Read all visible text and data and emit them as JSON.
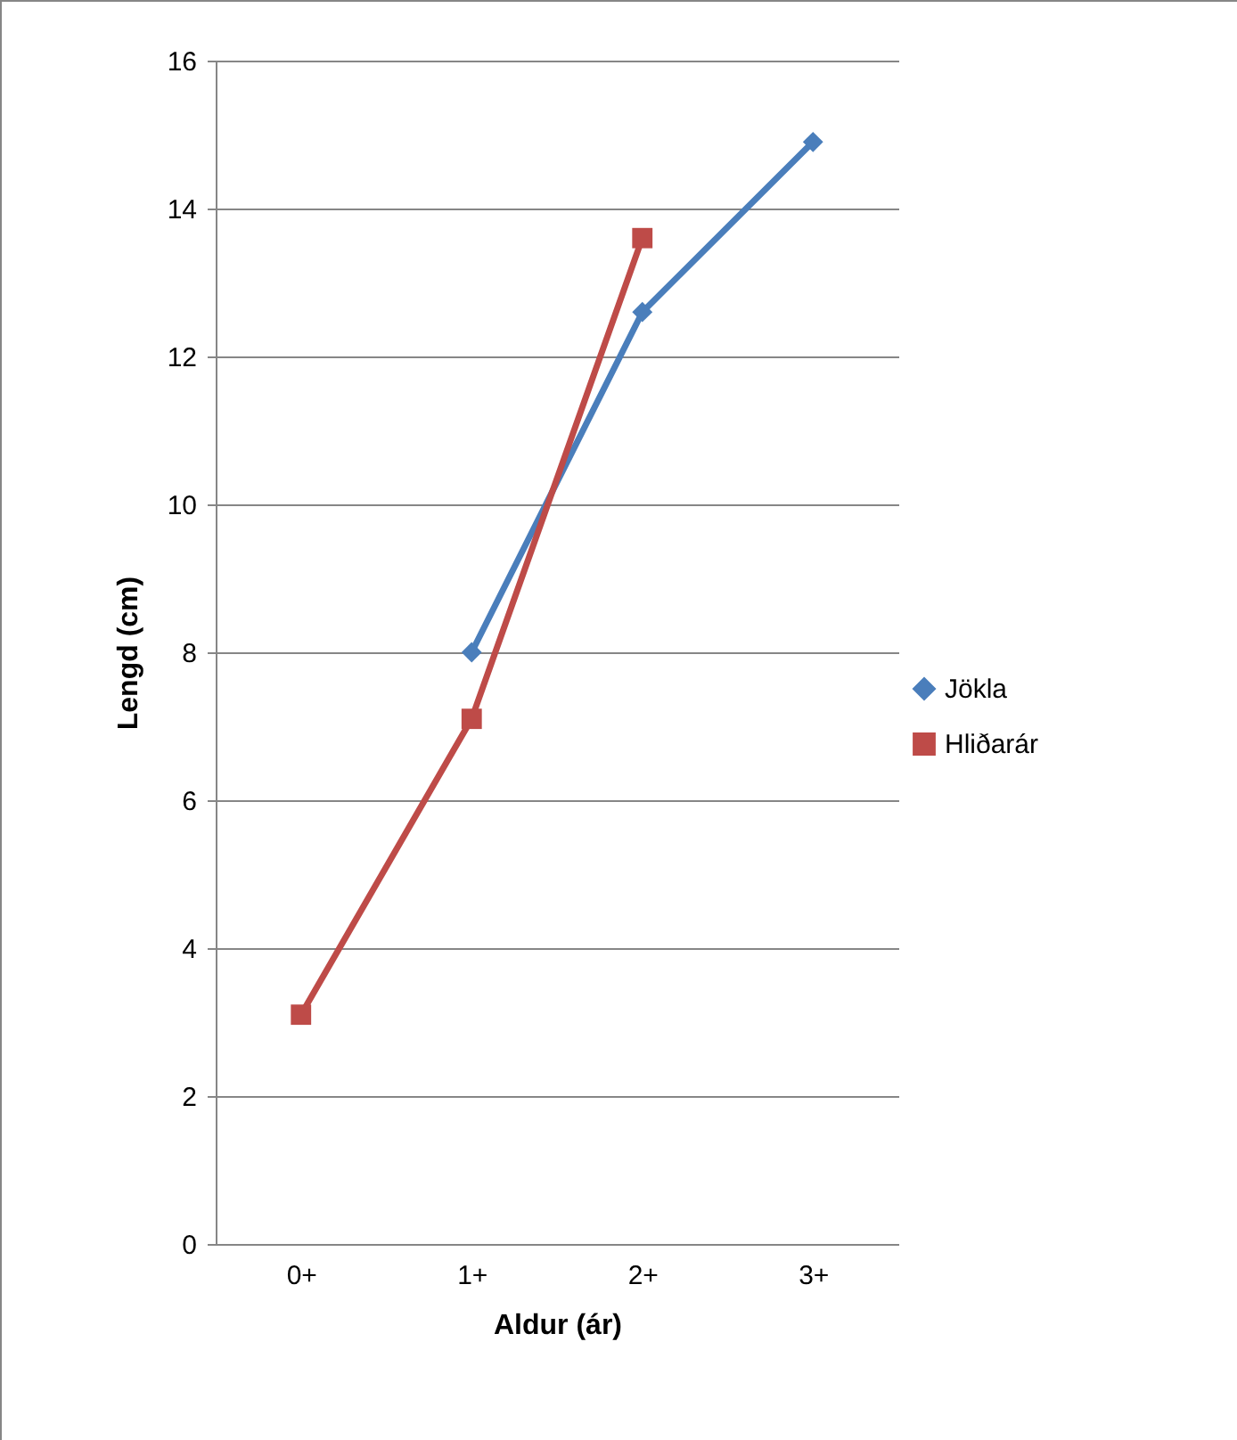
{
  "chart_data": {
    "type": "line",
    "xlabel": "Aldur (ár)",
    "ylabel": "Lengd (cm)",
    "categories": [
      "0+",
      "1+",
      "2+",
      "3+"
    ],
    "series": [
      {
        "name": "Jökla",
        "color": "#4a7ebb",
        "marker": "diamond",
        "values": [
          null,
          8.0,
          12.6,
          14.9
        ]
      },
      {
        "name": "Hliðarár",
        "color": "#be4b48",
        "marker": "square",
        "values": [
          3.1,
          7.1,
          13.6,
          null
        ]
      }
    ],
    "ylim": [
      0,
      16
    ],
    "yticks": [
      0,
      2,
      4,
      6,
      8,
      10,
      12,
      14,
      16
    ],
    "grid": "y",
    "legend": "right"
  }
}
